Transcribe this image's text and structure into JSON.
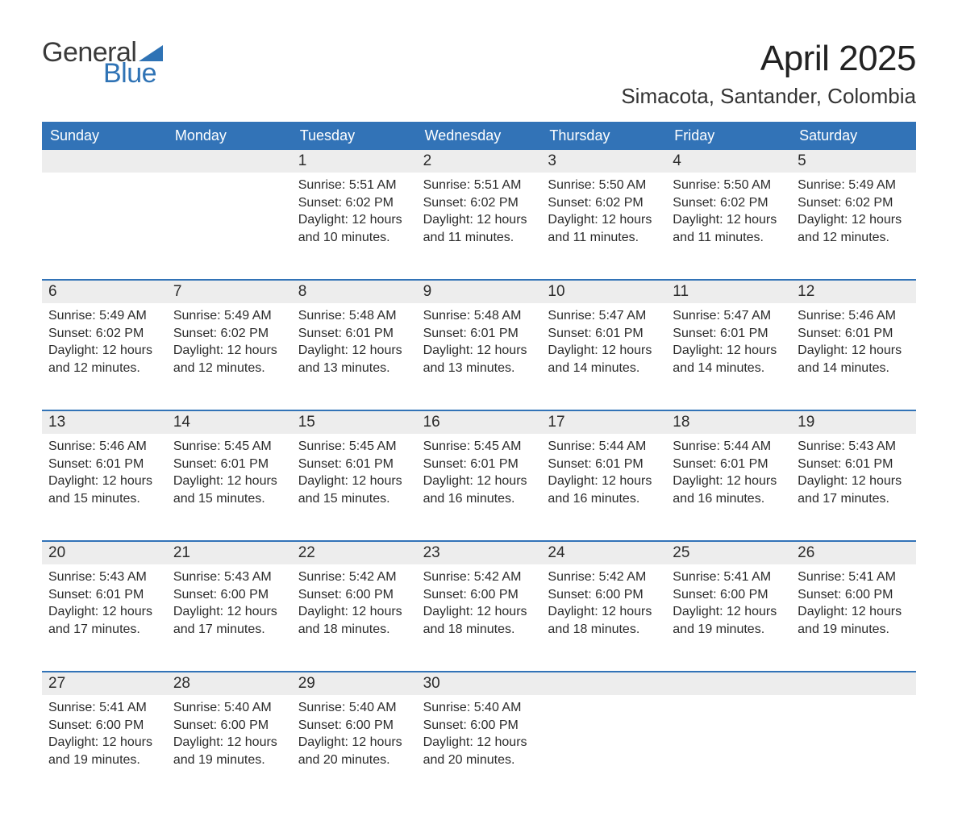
{
  "brand": {
    "word1": "General",
    "word2": "Blue",
    "triangle_color": "#2f73b5"
  },
  "title": "April 2025",
  "location": "Simacota, Santander, Colombia",
  "colors": {
    "header_bg": "#3273b7",
    "header_text": "#ffffff",
    "daynum_bg": "#ededed",
    "week_border": "#3273b7",
    "text": "#2b2b2b"
  },
  "font": {
    "family": "Arial",
    "title_size_pt": 33,
    "location_size_pt": 20,
    "dow_size_pt": 14,
    "body_size_pt": 12
  },
  "labels": {
    "sunrise": "Sunrise: ",
    "sunset": "Sunset: ",
    "daylight": "Daylight: "
  },
  "days_of_week": [
    "Sunday",
    "Monday",
    "Tuesday",
    "Wednesday",
    "Thursday",
    "Friday",
    "Saturday"
  ],
  "weeks": [
    [
      {
        "n": "",
        "sunrise": "",
        "sunset": "",
        "daylight": ""
      },
      {
        "n": "",
        "sunrise": "",
        "sunset": "",
        "daylight": ""
      },
      {
        "n": "1",
        "sunrise": "5:51 AM",
        "sunset": "6:02 PM",
        "daylight": "12 hours and 10 minutes."
      },
      {
        "n": "2",
        "sunrise": "5:51 AM",
        "sunset": "6:02 PM",
        "daylight": "12 hours and 11 minutes."
      },
      {
        "n": "3",
        "sunrise": "5:50 AM",
        "sunset": "6:02 PM",
        "daylight": "12 hours and 11 minutes."
      },
      {
        "n": "4",
        "sunrise": "5:50 AM",
        "sunset": "6:02 PM",
        "daylight": "12 hours and 11 minutes."
      },
      {
        "n": "5",
        "sunrise": "5:49 AM",
        "sunset": "6:02 PM",
        "daylight": "12 hours and 12 minutes."
      }
    ],
    [
      {
        "n": "6",
        "sunrise": "5:49 AM",
        "sunset": "6:02 PM",
        "daylight": "12 hours and 12 minutes."
      },
      {
        "n": "7",
        "sunrise": "5:49 AM",
        "sunset": "6:02 PM",
        "daylight": "12 hours and 12 minutes."
      },
      {
        "n": "8",
        "sunrise": "5:48 AM",
        "sunset": "6:01 PM",
        "daylight": "12 hours and 13 minutes."
      },
      {
        "n": "9",
        "sunrise": "5:48 AM",
        "sunset": "6:01 PM",
        "daylight": "12 hours and 13 minutes."
      },
      {
        "n": "10",
        "sunrise": "5:47 AM",
        "sunset": "6:01 PM",
        "daylight": "12 hours and 14 minutes."
      },
      {
        "n": "11",
        "sunrise": "5:47 AM",
        "sunset": "6:01 PM",
        "daylight": "12 hours and 14 minutes."
      },
      {
        "n": "12",
        "sunrise": "5:46 AM",
        "sunset": "6:01 PM",
        "daylight": "12 hours and 14 minutes."
      }
    ],
    [
      {
        "n": "13",
        "sunrise": "5:46 AM",
        "sunset": "6:01 PM",
        "daylight": "12 hours and 15 minutes."
      },
      {
        "n": "14",
        "sunrise": "5:45 AM",
        "sunset": "6:01 PM",
        "daylight": "12 hours and 15 minutes."
      },
      {
        "n": "15",
        "sunrise": "5:45 AM",
        "sunset": "6:01 PM",
        "daylight": "12 hours and 15 minutes."
      },
      {
        "n": "16",
        "sunrise": "5:45 AM",
        "sunset": "6:01 PM",
        "daylight": "12 hours and 16 minutes."
      },
      {
        "n": "17",
        "sunrise": "5:44 AM",
        "sunset": "6:01 PM",
        "daylight": "12 hours and 16 minutes."
      },
      {
        "n": "18",
        "sunrise": "5:44 AM",
        "sunset": "6:01 PM",
        "daylight": "12 hours and 16 minutes."
      },
      {
        "n": "19",
        "sunrise": "5:43 AM",
        "sunset": "6:01 PM",
        "daylight": "12 hours and 17 minutes."
      }
    ],
    [
      {
        "n": "20",
        "sunrise": "5:43 AM",
        "sunset": "6:01 PM",
        "daylight": "12 hours and 17 minutes."
      },
      {
        "n": "21",
        "sunrise": "5:43 AM",
        "sunset": "6:00 PM",
        "daylight": "12 hours and 17 minutes."
      },
      {
        "n": "22",
        "sunrise": "5:42 AM",
        "sunset": "6:00 PM",
        "daylight": "12 hours and 18 minutes."
      },
      {
        "n": "23",
        "sunrise": "5:42 AM",
        "sunset": "6:00 PM",
        "daylight": "12 hours and 18 minutes."
      },
      {
        "n": "24",
        "sunrise": "5:42 AM",
        "sunset": "6:00 PM",
        "daylight": "12 hours and 18 minutes."
      },
      {
        "n": "25",
        "sunrise": "5:41 AM",
        "sunset": "6:00 PM",
        "daylight": "12 hours and 19 minutes."
      },
      {
        "n": "26",
        "sunrise": "5:41 AM",
        "sunset": "6:00 PM",
        "daylight": "12 hours and 19 minutes."
      }
    ],
    [
      {
        "n": "27",
        "sunrise": "5:41 AM",
        "sunset": "6:00 PM",
        "daylight": "12 hours and 19 minutes."
      },
      {
        "n": "28",
        "sunrise": "5:40 AM",
        "sunset": "6:00 PM",
        "daylight": "12 hours and 19 minutes."
      },
      {
        "n": "29",
        "sunrise": "5:40 AM",
        "sunset": "6:00 PM",
        "daylight": "12 hours and 20 minutes."
      },
      {
        "n": "30",
        "sunrise": "5:40 AM",
        "sunset": "6:00 PM",
        "daylight": "12 hours and 20 minutes."
      },
      {
        "n": "",
        "sunrise": "",
        "sunset": "",
        "daylight": ""
      },
      {
        "n": "",
        "sunrise": "",
        "sunset": "",
        "daylight": ""
      },
      {
        "n": "",
        "sunrise": "",
        "sunset": "",
        "daylight": ""
      }
    ]
  ]
}
